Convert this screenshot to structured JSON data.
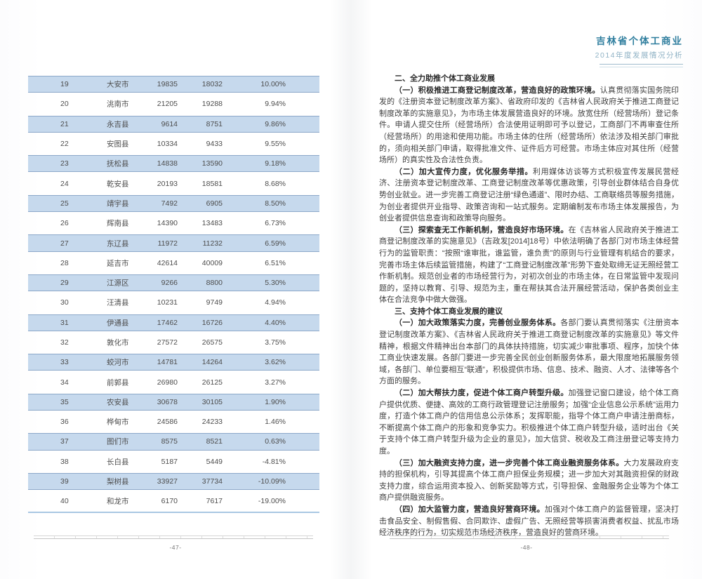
{
  "colors": {
    "accent_teal": "#2f7e9e",
    "row_shade": "#c6d9ed",
    "row_border": "#8ca8c9",
    "table_end_line": "#a9c7e3"
  },
  "left": {
    "table": {
      "rows": [
        [
          "19",
          "大安市",
          "19835",
          "18032",
          "10.00%"
        ],
        [
          "20",
          "洮南市",
          "21205",
          "19288",
          "9.94%"
        ],
        [
          "21",
          "永吉县",
          "9614",
          "8751",
          "9.86%"
        ],
        [
          "22",
          "安图县",
          "10334",
          "9433",
          "9.55%"
        ],
        [
          "23",
          "抚松县",
          "14838",
          "13590",
          "9.18%"
        ],
        [
          "24",
          "乾安县",
          "20193",
          "18581",
          "8.68%"
        ],
        [
          "25",
          "靖宇县",
          "7492",
          "6905",
          "8.50%"
        ],
        [
          "26",
          "辉南县",
          "14390",
          "13483",
          "6.73%"
        ],
        [
          "27",
          "东辽县",
          "11972",
          "11232",
          "6.59%"
        ],
        [
          "28",
          "延吉市",
          "42614",
          "40009",
          "6.51%"
        ],
        [
          "29",
          "江源区",
          "9266",
          "8800",
          "5.30%"
        ],
        [
          "30",
          "汪清县",
          "10231",
          "9749",
          "4.94%"
        ],
        [
          "31",
          "伊通县",
          "17462",
          "16726",
          "4.40%"
        ],
        [
          "32",
          "敦化市",
          "27572",
          "26575",
          "3.75%"
        ],
        [
          "33",
          "蛟河市",
          "14781",
          "14264",
          "3.62%"
        ],
        [
          "34",
          "前郭县",
          "26980",
          "26125",
          "3.27%"
        ],
        [
          "35",
          "农安县",
          "30678",
          "30105",
          "1.90%"
        ],
        [
          "36",
          "桦甸市",
          "24586",
          "24233",
          "1.46%"
        ],
        [
          "37",
          "图们市",
          "8575",
          "8521",
          "0.63%"
        ],
        [
          "38",
          "长白县",
          "5187",
          "5449",
          "-4.81%"
        ],
        [
          "39",
          "梨树县",
          "33927",
          "37734",
          "-10.09%"
        ],
        [
          "40",
          "和龙市",
          "6170",
          "7617",
          "-19.00%"
        ]
      ]
    },
    "page_number": "-47-"
  },
  "right": {
    "header": {
      "title": "吉林省个体工商业",
      "subtitle": "2014年度发展情况分析"
    },
    "blocks": [
      {
        "type": "heading",
        "text": "二、全力助推个体工商业发展"
      },
      {
        "type": "para",
        "lead": "（一）积极推进工商登记制度改革，营造良好的政策环境。",
        "text": "认真贯彻落实国务院印发的《注册资本登记制度改革方案》、省政府印发的《吉林省人民政府关于推进工商登记制度改革的实施意见》，为市场主体发展营造良好的环境。放宽住所（经营场所）登记条件。申请人提交住所（经营场所）合法使用证明即可予以登记，工商部门不再审查住所（经营场所）的用途和使用功能。市场主体的住所（经营场所）依法涉及相关部门审批的，须向相关部门申请，取得批准文件、证件后方可经营。市场主体应对其住所（经营场所）的真实性及合法性负责。"
      },
      {
        "type": "para",
        "lead": "（二）加大宣传力度，优化服务举措。",
        "text": "利用媒体访谈等方式积极宣传发展民营经济、注册资本登记制度改革、工商登记制度改革等优惠政策，引导创业群体结合自身优势创业就业。进一步完善工商登记注册“绿色通道”、限时办结、工商联络员等服务措施，为创业者提供开业指导、政策咨询和一站式服务。定期编制发布市场主体发展报告，为创业者提供信息查询和政策导向服务。"
      },
      {
        "type": "para",
        "lead": "（三）探索查无工作新机制，营造良好市场环境。",
        "text": "在《吉林省人民政府关于推进工商登记制度改革的实施意见》（吉政发[2014]18号）中依法明确了各部门对市场主体经营行为的监管职责：“按照“谁审批，谁监管，谁负责”的原则与行业管理有机结合的要求，完善市场主体后续监管措施，构建了“工商登记制度改革”形势下查处取缔无证无照经营工作新机制。规范创业者的市场经营行为，对初次创业的市场主体，在日常监管中发现问题的，坚持以教育、引导、规范为主，重在帮扶其合法开展经营活动，保护各类创业主体在合法竞争中做大做强。"
      },
      {
        "type": "heading",
        "text": "三、支持个体工商业发展的建议"
      },
      {
        "type": "para",
        "lead": "（一）加大政策落实力度，完善创业服务体系。",
        "text": "各部门要认真贯彻落实《注册资本登记制度改革方案》、《吉林省人民政府关于推进工商登记制度改革的实施意见》等文件精神，根据文件精神出台本部门的具体扶持措施，切实减少审批事项、程序，加快个体工商业快速发展。各部门要进一步完善全民创业创新服务体系，最大限度地拓展服务领域，各部门、单位要相互“联通”，积极提供市场、信息、技术、融资、人才、法律等各个方面的服务。"
      },
      {
        "type": "para",
        "lead": "（二）加大帮扶力度，促进个体工商户转型升级。",
        "text": "加强登记窗口建设，给个体工商户提供优质、便捷、高效的工商行政管理登记注册服务；加强“企业信息公示系统”运用力度，打造个体工商户的信用信息公示体系；发挥职能，指导个体工商户申请注册商标，不断提高个体工商户的形象和竞争实力。积极推进个体工商户转型升级，适时出台《关于支持个体工商户转型升级为企业的意见》，加大信贷、税收及工商注册登记等支持力度。"
      },
      {
        "type": "para",
        "lead": "（三）加大融资支持力度，进一步完善个体工商业融资服务体系。",
        "text": "大力发展政府支持的担保机构，引导其提高个体工商户担保业务规模；进一步加大对其融资担保的财政支持力度，综合运用资本投入、创新奖励等方式，引导担保、金融服务企业等为个体工商户提供融资服务。"
      },
      {
        "type": "para",
        "lead": "（四）加大监管力度，营造良好营商环境。",
        "text": "加强对个体工商户的监督管理，坚决打击食品安全、制假售假、合同欺诈、虚假广告、无照经营等损害消费者权益、扰乱市场经济秩序的行为，切实规范市场经济秩序，营造良好的营商环境。"
      }
    ],
    "page_number": "-48-"
  }
}
